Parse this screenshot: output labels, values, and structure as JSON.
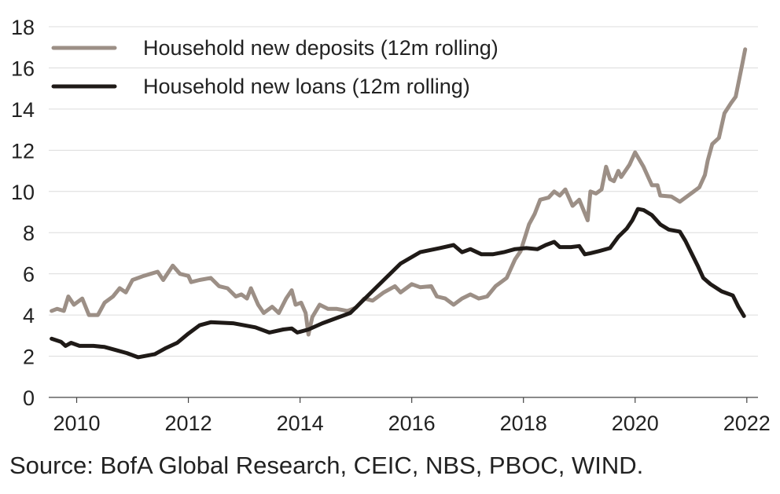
{
  "chart_data": {
    "type": "line",
    "title": "",
    "xlabel": "",
    "ylabel": "",
    "xlim": [
      2009.5,
      2022.2
    ],
    "ylim": [
      0,
      18
    ],
    "xticks": [
      "2010",
      "2012",
      "2014",
      "2016",
      "2018",
      "2020",
      "2022"
    ],
    "yticks": [
      "0",
      "2",
      "4",
      "6",
      "8",
      "10",
      "12",
      "14",
      "16",
      "18"
    ],
    "grid": "horizontal",
    "legend_position": "top-left",
    "series": [
      {
        "name": "Household new deposits (12m rolling)",
        "color": "#9c8f86",
        "points": [
          [
            2009.55,
            4.2
          ],
          [
            2009.65,
            4.3
          ],
          [
            2009.77,
            4.2
          ],
          [
            2009.85,
            4.9
          ],
          [
            2009.95,
            4.5
          ],
          [
            2010.1,
            4.8
          ],
          [
            2010.22,
            4.0
          ],
          [
            2010.38,
            4.0
          ],
          [
            2010.5,
            4.6
          ],
          [
            2010.65,
            4.9
          ],
          [
            2010.77,
            5.3
          ],
          [
            2010.88,
            5.1
          ],
          [
            2011.0,
            5.7
          ],
          [
            2011.2,
            5.9
          ],
          [
            2011.45,
            6.1
          ],
          [
            2011.55,
            5.7
          ],
          [
            2011.72,
            6.4
          ],
          [
            2011.85,
            6.0
          ],
          [
            2012.0,
            5.9
          ],
          [
            2012.05,
            5.6
          ],
          [
            2012.2,
            5.7
          ],
          [
            2012.4,
            5.8
          ],
          [
            2012.55,
            5.4
          ],
          [
            2012.7,
            5.3
          ],
          [
            2012.85,
            4.9
          ],
          [
            2012.95,
            5.0
          ],
          [
            2013.05,
            4.8
          ],
          [
            2013.12,
            5.3
          ],
          [
            2013.25,
            4.5
          ],
          [
            2013.35,
            4.1
          ],
          [
            2013.5,
            4.4
          ],
          [
            2013.62,
            4.1
          ],
          [
            2013.75,
            4.8
          ],
          [
            2013.85,
            5.2
          ],
          [
            2013.92,
            4.5
          ],
          [
            2014.02,
            4.6
          ],
          [
            2014.1,
            4.1
          ],
          [
            2014.15,
            3.05
          ],
          [
            2014.22,
            3.9
          ],
          [
            2014.35,
            4.5
          ],
          [
            2014.5,
            4.3
          ],
          [
            2014.65,
            4.3
          ],
          [
            2014.85,
            4.2
          ],
          [
            2015.0,
            4.35
          ],
          [
            2015.15,
            4.8
          ],
          [
            2015.3,
            4.7
          ],
          [
            2015.5,
            5.1
          ],
          [
            2015.7,
            5.4
          ],
          [
            2015.8,
            5.1
          ],
          [
            2016.0,
            5.5
          ],
          [
            2016.15,
            5.35
          ],
          [
            2016.35,
            5.4
          ],
          [
            2016.45,
            4.9
          ],
          [
            2016.6,
            4.8
          ],
          [
            2016.75,
            4.5
          ],
          [
            2016.9,
            4.8
          ],
          [
            2017.05,
            5.0
          ],
          [
            2017.2,
            4.8
          ],
          [
            2017.35,
            4.9
          ],
          [
            2017.5,
            5.4
          ],
          [
            2017.7,
            5.8
          ],
          [
            2017.85,
            6.7
          ],
          [
            2017.95,
            7.1
          ],
          [
            2018.1,
            8.4
          ],
          [
            2018.2,
            8.9
          ],
          [
            2018.3,
            9.6
          ],
          [
            2018.45,
            9.7
          ],
          [
            2018.55,
            10.0
          ],
          [
            2018.65,
            9.8
          ],
          [
            2018.75,
            10.1
          ],
          [
            2018.88,
            9.3
          ],
          [
            2019.0,
            9.6
          ],
          [
            2019.15,
            8.6
          ],
          [
            2019.2,
            10.0
          ],
          [
            2019.3,
            9.9
          ],
          [
            2019.4,
            10.1
          ],
          [
            2019.48,
            11.2
          ],
          [
            2019.55,
            10.6
          ],
          [
            2019.62,
            10.5
          ],
          [
            2019.7,
            11.0
          ],
          [
            2019.75,
            10.7
          ],
          [
            2019.9,
            11.3
          ],
          [
            2020.0,
            11.9
          ],
          [
            2020.15,
            11.2
          ],
          [
            2020.3,
            10.3
          ],
          [
            2020.4,
            10.3
          ],
          [
            2020.45,
            9.8
          ],
          [
            2020.65,
            9.75
          ],
          [
            2020.8,
            9.5
          ],
          [
            2020.9,
            9.7
          ],
          [
            2021.05,
            10.0
          ],
          [
            2021.15,
            10.2
          ],
          [
            2021.25,
            10.8
          ],
          [
            2021.3,
            11.5
          ],
          [
            2021.38,
            12.3
          ],
          [
            2021.5,
            12.6
          ],
          [
            2021.6,
            13.8
          ],
          [
            2021.72,
            14.3
          ],
          [
            2021.8,
            14.6
          ],
          [
            2021.92,
            16.2
          ],
          [
            2021.97,
            16.9
          ]
        ]
      },
      {
        "name": "Household new loans (12m rolling)",
        "color": "#1f1a17",
        "points": [
          [
            2009.55,
            2.85
          ],
          [
            2009.72,
            2.7
          ],
          [
            2009.8,
            2.5
          ],
          [
            2009.9,
            2.65
          ],
          [
            2010.05,
            2.5
          ],
          [
            2010.3,
            2.5
          ],
          [
            2010.5,
            2.45
          ],
          [
            2010.7,
            2.3
          ],
          [
            2010.9,
            2.15
          ],
          [
            2011.1,
            1.95
          ],
          [
            2011.4,
            2.1
          ],
          [
            2011.6,
            2.4
          ],
          [
            2011.8,
            2.65
          ],
          [
            2012.0,
            3.1
          ],
          [
            2012.2,
            3.5
          ],
          [
            2012.4,
            3.65
          ],
          [
            2012.8,
            3.6
          ],
          [
            2013.2,
            3.4
          ],
          [
            2013.45,
            3.15
          ],
          [
            2013.7,
            3.3
          ],
          [
            2013.85,
            3.35
          ],
          [
            2013.95,
            3.15
          ],
          [
            2014.15,
            3.3
          ],
          [
            2014.4,
            3.6
          ],
          [
            2014.6,
            3.8
          ],
          [
            2014.9,
            4.1
          ],
          [
            2015.2,
            4.9
          ],
          [
            2015.5,
            5.7
          ],
          [
            2015.8,
            6.5
          ],
          [
            2016.15,
            7.05
          ],
          [
            2016.5,
            7.25
          ],
          [
            2016.75,
            7.4
          ],
          [
            2016.9,
            7.05
          ],
          [
            2017.05,
            7.2
          ],
          [
            2017.25,
            6.95
          ],
          [
            2017.45,
            6.95
          ],
          [
            2017.65,
            7.05
          ],
          [
            2017.85,
            7.2
          ],
          [
            2018.05,
            7.25
          ],
          [
            2018.25,
            7.2
          ],
          [
            2018.4,
            7.4
          ],
          [
            2018.55,
            7.55
          ],
          [
            2018.65,
            7.3
          ],
          [
            2018.85,
            7.3
          ],
          [
            2019.0,
            7.35
          ],
          [
            2019.1,
            6.95
          ],
          [
            2019.2,
            7.0
          ],
          [
            2019.35,
            7.1
          ],
          [
            2019.55,
            7.25
          ],
          [
            2019.7,
            7.8
          ],
          [
            2019.85,
            8.2
          ],
          [
            2019.95,
            8.6
          ],
          [
            2020.05,
            9.15
          ],
          [
            2020.15,
            9.1
          ],
          [
            2020.3,
            8.85
          ],
          [
            2020.45,
            8.4
          ],
          [
            2020.6,
            8.15
          ],
          [
            2020.8,
            8.05
          ],
          [
            2020.9,
            7.6
          ],
          [
            2021.0,
            7.05
          ],
          [
            2021.12,
            6.4
          ],
          [
            2021.22,
            5.8
          ],
          [
            2021.35,
            5.5
          ],
          [
            2021.55,
            5.15
          ],
          [
            2021.75,
            4.95
          ],
          [
            2021.85,
            4.4
          ],
          [
            2021.95,
            3.95
          ]
        ]
      }
    ]
  },
  "source_text": "Source: BofA Global Research, CEIC, NBS, PBOC, WIND."
}
